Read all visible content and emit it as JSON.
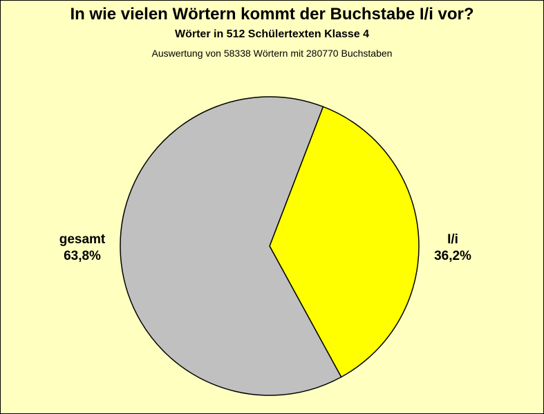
{
  "chart_data": {
    "type": "pie",
    "title": "In wie vielen Wörtern kommt der Buchstabe I/i vor?",
    "subtitle": "Wörter in 512 Schülertexten Klasse 4",
    "annotation": "Auswertung von 58338 Wörtern mit 280770 Buchstaben",
    "slices": [
      {
        "label": "I/i",
        "value": 36.2,
        "value_label": "36,2%",
        "color": "#ffff00"
      },
      {
        "label": "gesamt",
        "value": 63.8,
        "value_label": "63,8%",
        "color": "#c0c0c0"
      }
    ],
    "legend": "none"
  },
  "colors": {
    "background": "#ffffc0",
    "outline": "#000000"
  }
}
